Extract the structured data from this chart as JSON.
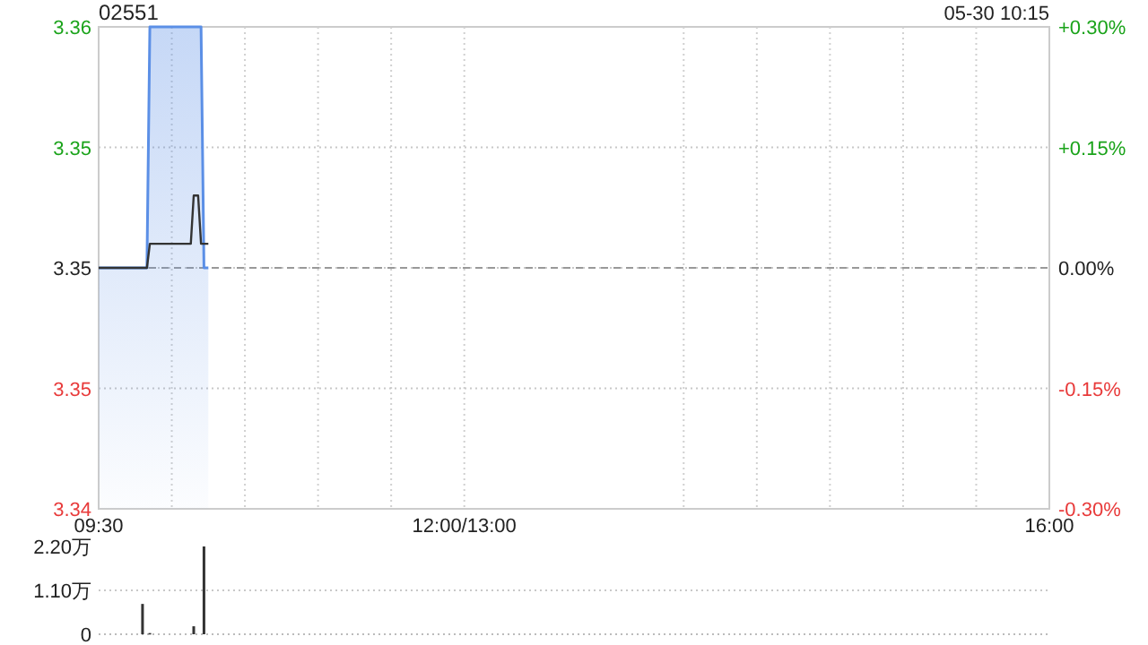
{
  "chart_data": [
    {
      "type": "line",
      "title": "02551",
      "subtitle": "05-30 10:15",
      "xlim": [
        9.5,
        16
      ],
      "xticks": [
        {
          "value": 9.5,
          "label": "09:30"
        },
        {
          "value": 10,
          "label": null
        },
        {
          "value": 10.5,
          "label": null
        },
        {
          "value": 11,
          "label": null
        },
        {
          "value": 11.5,
          "label": null
        },
        {
          "value": 12,
          "label": "12:00/13:00"
        },
        {
          "value": 13.5,
          "label": null
        },
        {
          "value": 14,
          "label": null
        },
        {
          "value": 14.5,
          "label": null
        },
        {
          "value": 15,
          "label": null
        },
        {
          "value": 15.5,
          "label": null
        },
        {
          "value": 16,
          "label": "16:00"
        }
      ],
      "ylim": [
        3.34,
        3.36
      ],
      "yticks": [
        {
          "value": 3.34,
          "label": "3.34"
        },
        {
          "value": 3.345,
          "label": "3.35"
        },
        {
          "value": 3.35,
          "label": "3.35"
        },
        {
          "value": 3.355,
          "label": "3.35"
        },
        {
          "value": 3.36,
          "label": "3.36"
        }
      ],
      "y2lim": [
        -0.3,
        0.3
      ],
      "y2ticks": [
        {
          "value": -0.3,
          "label": "-0.30%"
        },
        {
          "value": -0.15,
          "label": "-0.15%"
        },
        {
          "value": 0,
          "label": "0.00%"
        },
        {
          "value": 0.15,
          "label": "+0.15%"
        },
        {
          "value": 0.3,
          "label": "+0.30%"
        }
      ],
      "grid": true,
      "ref_lines": [
        {
          "axis": "y",
          "value": 3.35,
          "color": "#999999",
          "line_style": "dashed"
        }
      ],
      "series": [
        {
          "type": "area",
          "color": "#5b8fe6",
          "x": [
            9.5,
            9.83,
            9.85,
            10.2,
            10.22,
            10.25
          ],
          "values": [
            3.35,
            3.35,
            3.36,
            3.36,
            3.35,
            3.35
          ]
        },
        {
          "color": "#333333",
          "x": [
            9.5,
            9.83,
            9.85,
            10.13,
            10.15,
            10.18,
            10.2,
            10.25
          ],
          "values": [
            3.35,
            3.35,
            3.351,
            3.351,
            3.353,
            3.353,
            3.351,
            3.351
          ]
        }
      ]
    },
    {
      "type": "bar",
      "xlim": [
        9.5,
        16
      ],
      "ylim": [
        0,
        2.2
      ],
      "yticks": [
        0,
        {
          "value": 1.1,
          "label": "1.10万"
        },
        {
          "value": 2.2,
          "label": "2.20万"
        }
      ],
      "tick_labels": "y",
      "grid": "y",
      "color": "#333333",
      "x": [
        9.8,
        9.85,
        10.15,
        10.22
      ],
      "values": [
        0.76,
        0.03,
        0.2,
        2.2
      ]
    }
  ]
}
